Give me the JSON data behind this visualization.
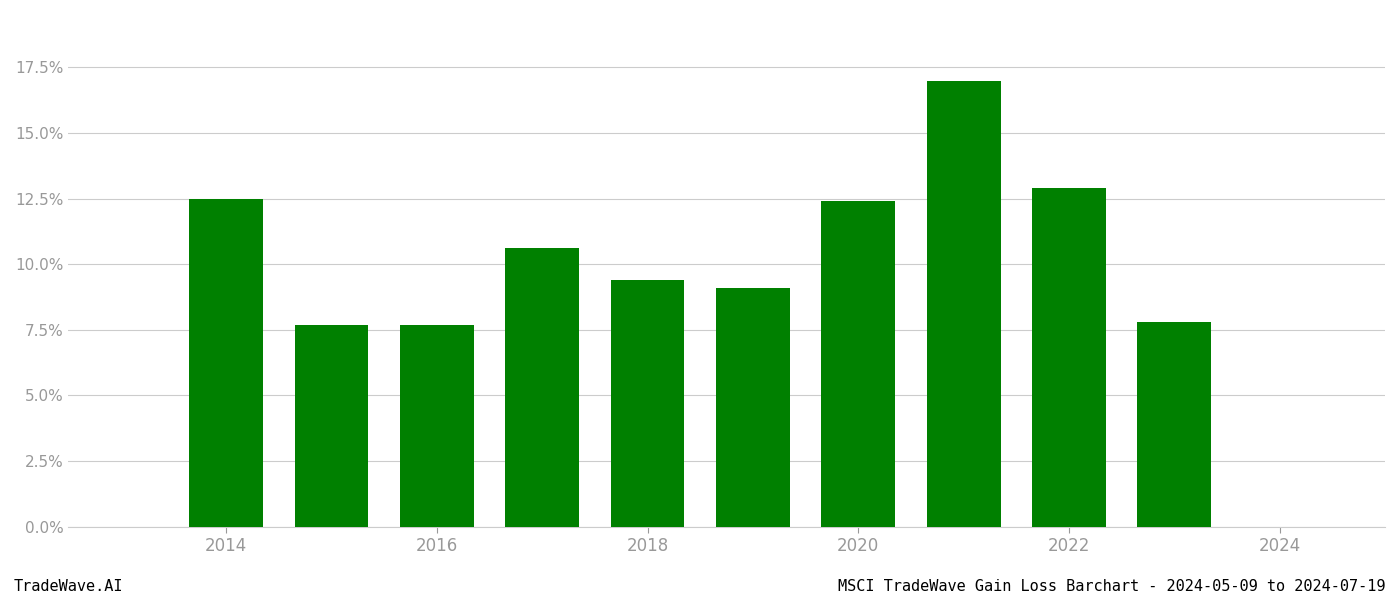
{
  "years": [
    2014,
    2015,
    2016,
    2017,
    2018,
    2019,
    2020,
    2021,
    2022,
    2023
  ],
  "values": [
    0.125,
    0.077,
    0.077,
    0.106,
    0.094,
    0.091,
    0.124,
    0.17,
    0.129,
    0.078
  ],
  "bar_color": "#008000",
  "background_color": "#ffffff",
  "xlim": [
    2012.5,
    2025.0
  ],
  "ylim": [
    0,
    0.195
  ],
  "yticks": [
    0.0,
    0.025,
    0.05,
    0.075,
    0.1,
    0.125,
    0.15,
    0.175
  ],
  "xticks": [
    2014,
    2016,
    2018,
    2020,
    2022,
    2024
  ],
  "grid_color": "#cccccc",
  "title_text": "MSCI TradeWave Gain Loss Barchart - 2024-05-09 to 2024-07-19",
  "watermark_text": "TradeWave.AI",
  "title_fontsize": 11,
  "watermark_fontsize": 11,
  "tick_color": "#999999",
  "spine_color": "#cccccc",
  "bar_width": 0.7
}
